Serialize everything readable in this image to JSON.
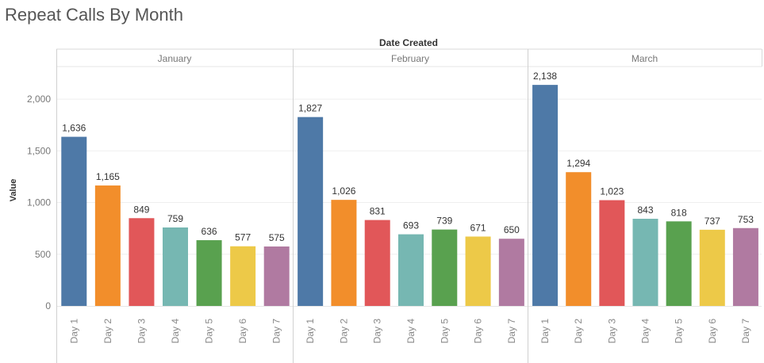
{
  "chart_data": {
    "type": "bar",
    "title": "Repeat Calls By Month",
    "column_header": "Date Created",
    "ylabel": "Value",
    "ylim": [
      0,
      2450
    ],
    "yticks": [
      0,
      500,
      1000,
      1500,
      2000
    ],
    "ytick_labels": [
      "0",
      "500",
      "1,000",
      "1,500",
      "2,000"
    ],
    "grid": true,
    "categories": [
      "Day 1",
      "Day 2",
      "Day 3",
      "Day 4",
      "Day 5",
      "Day 6",
      "Day 7"
    ],
    "colors": [
      "#4e79a7",
      "#f28e2b",
      "#e15759",
      "#76b7b2",
      "#59a14f",
      "#edc948",
      "#b07aa1"
    ],
    "panels": [
      {
        "name": "January",
        "values": [
          1636,
          1165,
          849,
          759,
          636,
          577,
          575
        ],
        "labels": [
          "1,636",
          "1,165",
          "849",
          "759",
          "636",
          "577",
          "575"
        ]
      },
      {
        "name": "February",
        "values": [
          1827,
          1026,
          831,
          693,
          739,
          671,
          650
        ],
        "labels": [
          "1,827",
          "1,026",
          "831",
          "693",
          "739",
          "671",
          "650"
        ]
      },
      {
        "name": "March",
        "values": [
          2138,
          1294,
          1023,
          843,
          818,
          737,
          753
        ],
        "labels": [
          "2,138",
          "1,294",
          "1,023",
          "843",
          "818",
          "737",
          "753"
        ]
      }
    ]
  }
}
